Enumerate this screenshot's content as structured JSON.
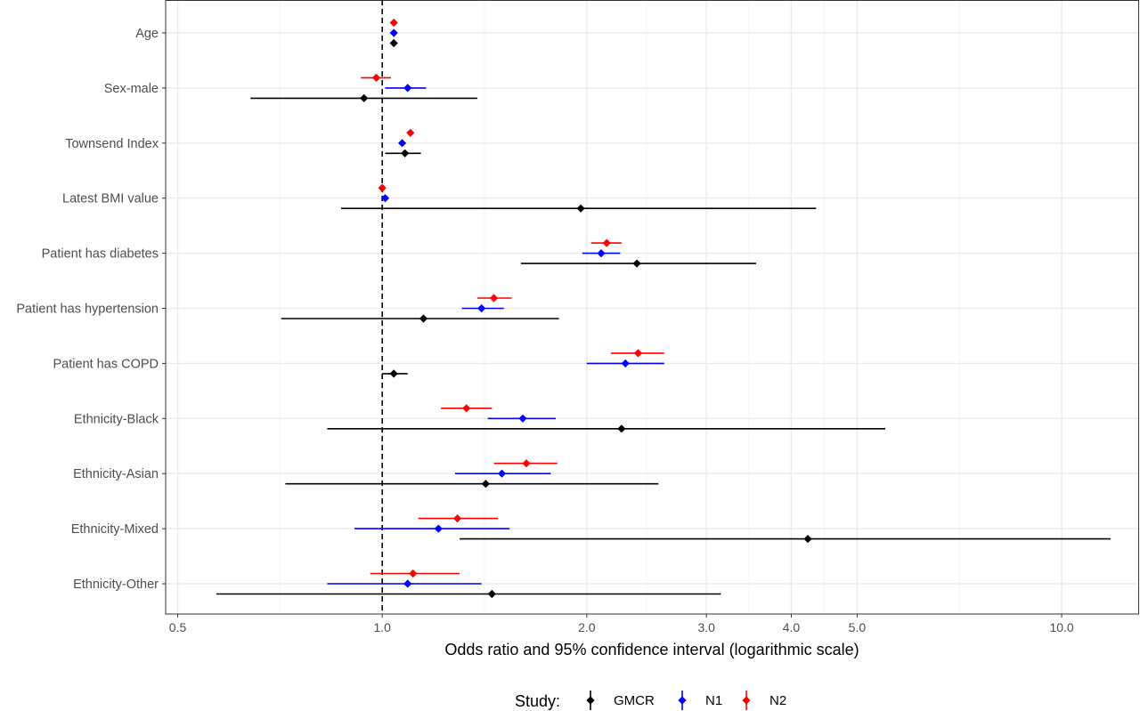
{
  "chart_data": {
    "type": "forest",
    "xlabel": "Odds ratio and 95% confidence interval (logarithmic scale)",
    "x_scale": "log",
    "xlim": [
      0.48,
      13.0
    ],
    "x_ticks": [
      0.5,
      1.0,
      2.0,
      3.0,
      4.0,
      5.0,
      10.0
    ],
    "x_tick_labels": [
      "0.5",
      "1.0",
      "2.0",
      "3.0",
      "4.0",
      "5.0",
      "10.0"
    ],
    "reference_line": 1.0,
    "grid": true,
    "legend": {
      "title": "Study:",
      "position": "bottom"
    },
    "categories": [
      "Age",
      "Sex-male",
      "Townsend Index",
      "Latest BMI value",
      "Patient has diabetes",
      "Patient has hypertension",
      "Patient has COPD",
      "Ethnicity-Black",
      "Ethnicity-Asian",
      "Ethnicity-Mixed",
      "Ethnicity-Other"
    ],
    "series": [
      {
        "name": "GMCR",
        "color": "#000000",
        "points": [
          {
            "or": 1.04,
            "lo": 1.03,
            "hi": 1.05
          },
          {
            "or": 0.94,
            "lo": 0.64,
            "hi": 1.38
          },
          {
            "or": 1.08,
            "lo": 1.01,
            "hi": 1.14
          },
          {
            "or": 1.96,
            "lo": 0.87,
            "hi": 4.35
          },
          {
            "or": 2.37,
            "lo": 1.6,
            "hi": 3.55
          },
          {
            "or": 1.15,
            "lo": 0.71,
            "hi": 1.82
          },
          {
            "or": 1.04,
            "lo": 1.0,
            "hi": 1.09
          },
          {
            "or": 2.25,
            "lo": 0.83,
            "hi": 5.5
          },
          {
            "or": 1.42,
            "lo": 0.72,
            "hi": 2.55
          },
          {
            "or": 4.23,
            "lo": 1.3,
            "hi": 11.8
          },
          {
            "or": 1.45,
            "lo": 0.57,
            "hi": 3.15
          }
        ]
      },
      {
        "name": "N1",
        "color": "#0000ff",
        "points": [
          {
            "or": 1.04,
            "lo": 1.03,
            "hi": 1.05
          },
          {
            "or": 1.09,
            "lo": 1.01,
            "hi": 1.16
          },
          {
            "or": 1.07,
            "lo": 1.06,
            "hi": 1.08
          },
          {
            "or": 1.01,
            "lo": 1.0,
            "hi": 1.02
          },
          {
            "or": 2.1,
            "lo": 1.97,
            "hi": 2.24
          },
          {
            "or": 1.4,
            "lo": 1.31,
            "hi": 1.51
          },
          {
            "or": 2.28,
            "lo": 2.0,
            "hi": 2.6
          },
          {
            "or": 1.61,
            "lo": 1.43,
            "hi": 1.8
          },
          {
            "or": 1.5,
            "lo": 1.28,
            "hi": 1.77
          },
          {
            "or": 1.21,
            "lo": 0.91,
            "hi": 1.54
          },
          {
            "or": 1.09,
            "lo": 0.83,
            "hi": 1.4
          }
        ]
      },
      {
        "name": "N2",
        "color": "#ff0000",
        "points": [
          {
            "or": 1.04,
            "lo": 1.03,
            "hi": 1.05
          },
          {
            "or": 0.98,
            "lo": 0.93,
            "hi": 1.03
          },
          {
            "or": 1.1,
            "lo": 1.09,
            "hi": 1.11
          },
          {
            "or": 1.0,
            "lo": 0.99,
            "hi": 1.01
          },
          {
            "or": 2.14,
            "lo": 2.03,
            "hi": 2.25
          },
          {
            "or": 1.46,
            "lo": 1.38,
            "hi": 1.55
          },
          {
            "or": 2.38,
            "lo": 2.17,
            "hi": 2.6
          },
          {
            "or": 1.33,
            "lo": 1.22,
            "hi": 1.45
          },
          {
            "or": 1.63,
            "lo": 1.46,
            "hi": 1.81
          },
          {
            "or": 1.29,
            "lo": 1.13,
            "hi": 1.48
          },
          {
            "or": 1.11,
            "lo": 0.96,
            "hi": 1.3
          }
        ]
      }
    ]
  }
}
